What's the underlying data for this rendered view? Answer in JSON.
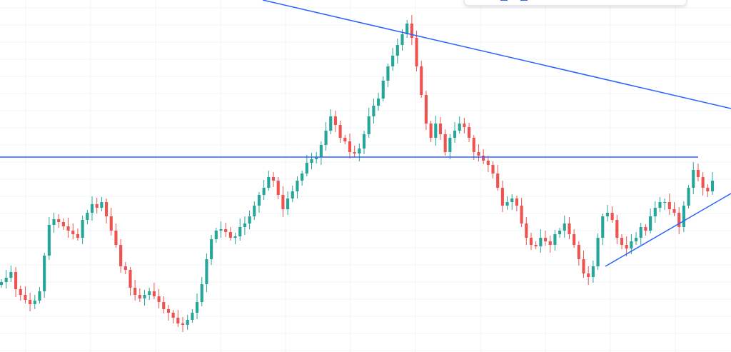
{
  "chart_data": {
    "type": "candlestick",
    "title": "",
    "xlabel": "",
    "ylabel": "",
    "grid": true,
    "ylim": [
      0,
      493
    ],
    "colors": {
      "up": "#26a69a",
      "down": "#ef5350",
      "trendline": "#2962ff",
      "grid": "#f0f3fa"
    },
    "trend_lines": [
      {
        "name": "upper-trendline",
        "from": [
          50,
          506
        ],
        "to": [
          146,
          341
        ]
      },
      {
        "name": "horizontal-level",
        "from": [
          0,
          273
        ],
        "to": [
          146,
          273
        ]
      },
      {
        "name": "lower-trendline",
        "from": [
          121,
          121
        ],
        "to": [
          146,
          223
        ]
      }
    ],
    "candles_close": [
      98,
      104,
      112,
      88,
      80,
      73,
      67,
      72,
      85,
      135,
      178,
      186,
      182,
      176,
      170,
      165,
      160,
      185,
      195,
      207,
      202,
      210,
      190,
      170,
      150,
      120,
      115,
      90,
      80,
      75,
      80,
      85,
      78,
      70,
      60,
      55,
      48,
      40,
      38,
      45,
      55,
      70,
      95,
      130,
      158,
      170,
      172,
      168,
      160,
      162,
      175,
      180,
      190,
      205,
      220,
      230,
      245,
      240,
      220,
      200,
      215,
      225,
      240,
      250,
      265,
      270,
      273,
      290,
      310,
      330,
      318,
      300,
      295,
      280,
      278,
      285,
      305,
      330,
      345,
      355,
      380,
      400,
      415,
      430,
      445,
      460,
      440,
      400,
      360,
      320,
      300,
      320,
      305,
      280,
      300,
      310,
      320,
      315,
      300,
      280,
      275,
      268,
      262,
      250,
      230,
      205,
      210,
      215,
      205,
      180,
      160,
      150,
      148,
      160,
      155,
      150,
      165,
      170,
      180,
      165,
      150,
      130,
      110,
      105,
      120,
      160,
      190,
      195,
      185,
      160,
      150,
      145,
      155,
      160,
      175,
      170,
      190,
      202,
      210,
      210,
      200,
      195,
      175,
      205,
      230,
      255,
      245,
      230,
      225,
      240
    ]
  }
}
